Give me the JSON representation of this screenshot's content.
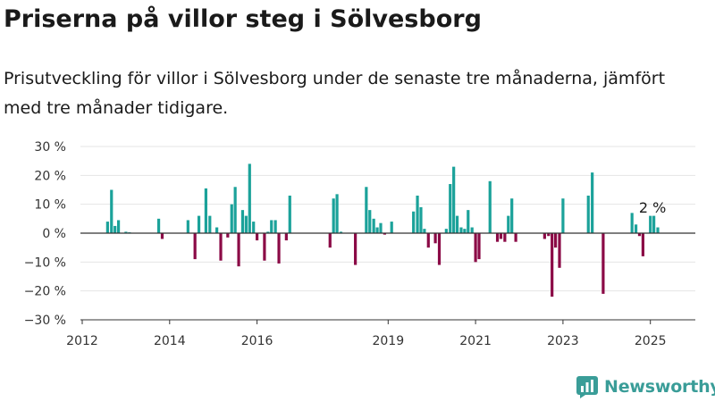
{
  "header": {
    "title": "Priserna på villor steg i Sölvesborg",
    "subtitle": "Prisutveckling för villor i Sölvesborg under de senaste tre månaderna, jämfört med tre månader tidigare."
  },
  "brand": {
    "name": "Newsworthy",
    "icon": "newsworthy-logo-icon"
  },
  "colors": {
    "positive": "#1ba29a",
    "negative": "#8b0a46",
    "zero_line": "#333333",
    "grid": "#e5e5e5"
  },
  "chart_data": {
    "type": "bar",
    "title": "",
    "xlabel": "",
    "ylabel": "",
    "ylim": [
      -30,
      30
    ],
    "yticks": [
      -30,
      -20,
      -10,
      0,
      10,
      20,
      30
    ],
    "ytick_labels": [
      "−30 %",
      "−20 %",
      "−10 %",
      "0 %",
      "10 %",
      "20 %",
      "30 %"
    ],
    "x_domain": [
      2012.0,
      2025.83
    ],
    "xticks": [
      2012,
      2014,
      2016,
      2019,
      2021,
      2023,
      2025
    ],
    "xtick_labels": [
      "2012",
      "2014",
      "2016",
      "2019",
      "2021",
      "2023",
      "2025"
    ],
    "grid": "horizontal",
    "annotation": {
      "text": "2 %",
      "x": 2025.05
    },
    "points": [
      {
        "x": 2012.58,
        "value": 4
      },
      {
        "x": 2012.67,
        "value": 15
      },
      {
        "x": 2012.75,
        "value": 2.5
      },
      {
        "x": 2012.83,
        "value": 4.5
      },
      {
        "x": 2013.0,
        "value": 0.5
      },
      {
        "x": 2013.08,
        "value": 0.3
      },
      {
        "x": 2013.75,
        "value": 5
      },
      {
        "x": 2013.83,
        "value": -2
      },
      {
        "x": 2014.42,
        "value": 4.5
      },
      {
        "x": 2014.58,
        "value": -9
      },
      {
        "x": 2014.67,
        "value": 6
      },
      {
        "x": 2014.83,
        "value": 15.5
      },
      {
        "x": 2014.92,
        "value": 6
      },
      {
        "x": 2015.08,
        "value": 2
      },
      {
        "x": 2015.17,
        "value": -9.5
      },
      {
        "x": 2015.33,
        "value": -1.5
      },
      {
        "x": 2015.42,
        "value": 10
      },
      {
        "x": 2015.5,
        "value": 16
      },
      {
        "x": 2015.58,
        "value": -11.5
      },
      {
        "x": 2015.67,
        "value": 8
      },
      {
        "x": 2015.75,
        "value": 6
      },
      {
        "x": 2015.83,
        "value": 24
      },
      {
        "x": 2015.92,
        "value": 4
      },
      {
        "x": 2016.0,
        "value": -2.5
      },
      {
        "x": 2016.17,
        "value": -9.5
      },
      {
        "x": 2016.25,
        "value": 0.5
      },
      {
        "x": 2016.33,
        "value": 4.5
      },
      {
        "x": 2016.42,
        "value": 4.5
      },
      {
        "x": 2016.5,
        "value": -10.5
      },
      {
        "x": 2016.67,
        "value": -2.5
      },
      {
        "x": 2016.75,
        "value": 13
      },
      {
        "x": 2017.67,
        "value": -5
      },
      {
        "x": 2017.75,
        "value": 12
      },
      {
        "x": 2017.83,
        "value": 13.5
      },
      {
        "x": 2017.92,
        "value": 0.5
      },
      {
        "x": 2018.25,
        "value": -11
      },
      {
        "x": 2018.5,
        "value": 16
      },
      {
        "x": 2018.58,
        "value": 8
      },
      {
        "x": 2018.67,
        "value": 5
      },
      {
        "x": 2018.75,
        "value": 2
      },
      {
        "x": 2018.83,
        "value": 3.5
      },
      {
        "x": 2018.92,
        "value": -0.5
      },
      {
        "x": 2019.08,
        "value": 4
      },
      {
        "x": 2019.58,
        "value": 7.5
      },
      {
        "x": 2019.67,
        "value": 13
      },
      {
        "x": 2019.75,
        "value": 9
      },
      {
        "x": 2019.83,
        "value": 1.5
      },
      {
        "x": 2019.92,
        "value": -5
      },
      {
        "x": 2020.08,
        "value": -3.5
      },
      {
        "x": 2020.17,
        "value": -11
      },
      {
        "x": 2020.33,
        "value": 1.5
      },
      {
        "x": 2020.42,
        "value": 17
      },
      {
        "x": 2020.5,
        "value": 23
      },
      {
        "x": 2020.58,
        "value": 6
      },
      {
        "x": 2020.67,
        "value": 2
      },
      {
        "x": 2020.75,
        "value": 1.5
      },
      {
        "x": 2020.83,
        "value": 8
      },
      {
        "x": 2020.92,
        "value": 2
      },
      {
        "x": 2021.0,
        "value": -10
      },
      {
        "x": 2021.08,
        "value": -9
      },
      {
        "x": 2021.33,
        "value": 18
      },
      {
        "x": 2021.5,
        "value": -3
      },
      {
        "x": 2021.58,
        "value": -2
      },
      {
        "x": 2021.67,
        "value": -3
      },
      {
        "x": 2021.75,
        "value": 6
      },
      {
        "x": 2021.83,
        "value": 12
      },
      {
        "x": 2021.92,
        "value": -3
      },
      {
        "x": 2022.58,
        "value": -2
      },
      {
        "x": 2022.67,
        "value": -1
      },
      {
        "x": 2022.75,
        "value": -22
      },
      {
        "x": 2022.83,
        "value": -5
      },
      {
        "x": 2022.92,
        "value": -12
      },
      {
        "x": 2023.0,
        "value": 12
      },
      {
        "x": 2023.58,
        "value": 13
      },
      {
        "x": 2023.67,
        "value": 21
      },
      {
        "x": 2023.92,
        "value": -21
      },
      {
        "x": 2024.58,
        "value": 7
      },
      {
        "x": 2024.67,
        "value": 3
      },
      {
        "x": 2024.75,
        "value": -1
      },
      {
        "x": 2024.83,
        "value": -8
      },
      {
        "x": 2025.0,
        "value": 6
      },
      {
        "x": 2025.08,
        "value": 6
      },
      {
        "x": 2025.17,
        "value": 2
      }
    ]
  }
}
